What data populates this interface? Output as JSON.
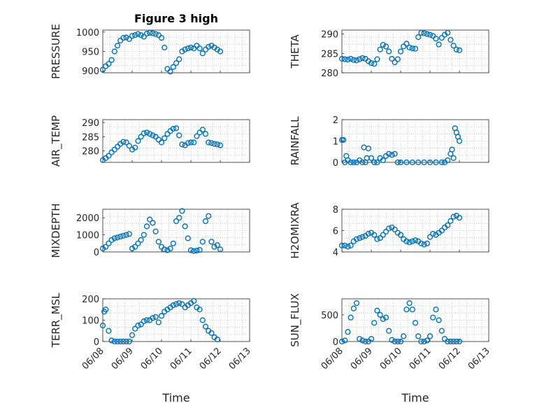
{
  "figure": {
    "title": "Figure 3 high"
  },
  "chart_data": [
    {
      "id": "pressure",
      "type": "scatter",
      "ylabel": "PRESSURE",
      "ylim": [
        895,
        1005
      ],
      "yticks": [
        900,
        950,
        1000
      ],
      "xlim": [
        0,
        5
      ],
      "show_xticklabels": false,
      "title": "Figure 3 high",
      "x": [
        0.0,
        0.1,
        0.2,
        0.3,
        0.4,
        0.5,
        0.6,
        0.7,
        0.8,
        0.9,
        1.0,
        1.1,
        1.2,
        1.3,
        1.4,
        1.5,
        1.6,
        1.7,
        1.8,
        1.9,
        2.0,
        2.1,
        2.2,
        2.3,
        2.4,
        2.5,
        2.6,
        2.7,
        2.8,
        2.9,
        3.0,
        3.1,
        3.2,
        3.3,
        3.4,
        3.5,
        3.6,
        3.7,
        3.8,
        3.9,
        4.0
      ],
      "y": [
        903,
        912,
        918,
        928,
        950,
        965,
        978,
        985,
        986,
        982,
        990,
        992,
        995,
        992,
        988,
        996,
        998,
        997,
        995,
        992,
        985,
        960,
        905,
        898,
        910,
        920,
        930,
        950,
        955,
        958,
        960,
        958,
        965,
        958,
        945,
        955,
        962,
        965,
        960,
        955,
        950
      ]
    },
    {
      "id": "theta",
      "type": "scatter",
      "ylabel": "THETA",
      "ylim": [
        280,
        291
      ],
      "yticks": [
        280,
        285,
        290
      ],
      "xlim": [
        0,
        5
      ],
      "show_xticklabels": false,
      "x": [
        0.0,
        0.1,
        0.2,
        0.3,
        0.4,
        0.5,
        0.6,
        0.7,
        0.8,
        0.9,
        1.0,
        1.1,
        1.2,
        1.3,
        1.4,
        1.5,
        1.6,
        1.7,
        1.8,
        1.9,
        2.0,
        2.1,
        2.2,
        2.3,
        2.4,
        2.5,
        2.6,
        2.7,
        2.8,
        2.9,
        3.0,
        3.1,
        3.2,
        3.3,
        3.4,
        3.5,
        3.6,
        3.7,
        3.8,
        3.9,
        4.0
      ],
      "y": [
        283.6,
        283.5,
        283.4,
        283.6,
        283.3,
        283.2,
        283.5,
        283.8,
        283.6,
        283.0,
        282.5,
        282.3,
        283.5,
        286.0,
        287.2,
        286.8,
        285.5,
        283.6,
        282.7,
        283.5,
        285.5,
        286.8,
        287.5,
        286.5,
        286.3,
        286.2,
        289.2,
        290.3,
        290.2,
        290.0,
        289.8,
        289.5,
        288.8,
        287.3,
        289.0,
        289.8,
        290.3,
        288.5,
        287.0,
        286.0,
        285.8
      ]
    },
    {
      "id": "air_temp",
      "type": "scatter",
      "ylabel": "AIR_TEMP",
      "ylim": [
        276,
        291
      ],
      "yticks": [
        280,
        285,
        290
      ],
      "xlim": [
        0,
        5
      ],
      "show_xticklabels": false,
      "x": [
        0.0,
        0.1,
        0.2,
        0.3,
        0.4,
        0.5,
        0.6,
        0.7,
        0.8,
        0.9,
        1.0,
        1.1,
        1.2,
        1.3,
        1.4,
        1.5,
        1.6,
        1.7,
        1.8,
        1.9,
        2.0,
        2.1,
        2.2,
        2.3,
        2.4,
        2.5,
        2.6,
        2.7,
        2.8,
        2.9,
        3.0,
        3.1,
        3.2,
        3.3,
        3.4,
        3.5,
        3.6,
        3.7,
        3.8,
        3.9,
        4.0
      ],
      "y": [
        276.8,
        277.5,
        278.3,
        279.5,
        280.5,
        281.5,
        282.5,
        283.2,
        283.0,
        281.8,
        280.5,
        281.2,
        283.5,
        285.0,
        286.2,
        286.5,
        286.0,
        285.5,
        285.0,
        284.0,
        283.0,
        284.5,
        286.0,
        287.0,
        287.8,
        288.0,
        285.5,
        282.3,
        282.0,
        282.8,
        283.0,
        283.0,
        285.2,
        286.5,
        287.5,
        286.0,
        283.0,
        282.8,
        282.5,
        282.3,
        282.0
      ]
    },
    {
      "id": "rainfall",
      "type": "scatter",
      "ylabel": "RAINFALL",
      "ylim": [
        0,
        2
      ],
      "yticks": [
        0,
        1,
        2
      ],
      "xlim": [
        0,
        5
      ],
      "show_xticklabels": false,
      "x": [
        0.0,
        0.05,
        0.1,
        0.15,
        0.2,
        0.3,
        0.4,
        0.5,
        0.6,
        0.7,
        0.75,
        0.8,
        0.85,
        0.9,
        1.0,
        1.1,
        1.2,
        1.3,
        1.4,
        1.5,
        1.6,
        1.7,
        1.8,
        1.9,
        2.0,
        2.2,
        2.4,
        2.6,
        2.8,
        3.0,
        3.2,
        3.4,
        3.5,
        3.6,
        3.7,
        3.75,
        3.8,
        3.85,
        3.9,
        3.95,
        4.0
      ],
      "y": [
        1.05,
        1.05,
        0.0,
        0.3,
        0.1,
        0.0,
        0.0,
        0.0,
        0.1,
        0.0,
        0.7,
        0.0,
        0.2,
        0.65,
        0.2,
        0.0,
        0.0,
        0.2,
        0.1,
        0.3,
        0.4,
        0.35,
        0.4,
        0.0,
        0.0,
        0.0,
        0.0,
        0.0,
        0.0,
        0.0,
        0.0,
        0.0,
        0.0,
        0.1,
        0.4,
        0.6,
        0.2,
        1.6,
        1.4,
        1.2,
        1.0
      ]
    },
    {
      "id": "mixdepth",
      "type": "scatter",
      "ylabel": "MIXDEPTH",
      "ylim": [
        0,
        2500
      ],
      "yticks": [
        0,
        1000,
        2000
      ],
      "xlim": [
        0,
        5
      ],
      "show_xticklabels": false,
      "x": [
        0.0,
        0.1,
        0.2,
        0.3,
        0.4,
        0.5,
        0.6,
        0.7,
        0.8,
        0.9,
        1.0,
        1.1,
        1.2,
        1.3,
        1.4,
        1.5,
        1.6,
        1.7,
        1.8,
        1.9,
        2.0,
        2.1,
        2.2,
        2.3,
        2.4,
        2.5,
        2.6,
        2.7,
        2.8,
        2.9,
        3.0,
        3.1,
        3.2,
        3.3,
        3.4,
        3.5,
        3.6,
        3.7,
        3.8,
        3.9,
        4.0
      ],
      "y": [
        200,
        300,
        500,
        700,
        800,
        850,
        900,
        950,
        1000,
        1050,
        200,
        300,
        500,
        700,
        1000,
        1500,
        1900,
        1700,
        1200,
        600,
        300,
        150,
        100,
        200,
        500,
        1800,
        2000,
        2400,
        1500,
        800,
        100,
        50,
        80,
        120,
        600,
        1800,
        2100,
        600,
        300,
        400,
        150
      ]
    },
    {
      "id": "h2omixra",
      "type": "scatter",
      "ylabel": "H2OMIXRA",
      "ylim": [
        4,
        8
      ],
      "yticks": [
        4,
        6,
        8
      ],
      "xlim": [
        0,
        5
      ],
      "show_xticklabels": false,
      "x": [
        0.0,
        0.1,
        0.2,
        0.3,
        0.4,
        0.5,
        0.6,
        0.7,
        0.8,
        0.9,
        1.0,
        1.1,
        1.2,
        1.3,
        1.4,
        1.5,
        1.6,
        1.7,
        1.8,
        1.9,
        2.0,
        2.1,
        2.2,
        2.3,
        2.4,
        2.5,
        2.6,
        2.7,
        2.8,
        2.9,
        3.0,
        3.1,
        3.2,
        3.3,
        3.4,
        3.5,
        3.6,
        3.7,
        3.8,
        3.9,
        4.0
      ],
      "y": [
        4.6,
        4.6,
        4.5,
        4.6,
        5.0,
        5.2,
        5.3,
        5.4,
        5.5,
        5.7,
        5.8,
        5.6,
        5.2,
        5.3,
        5.6,
        5.9,
        6.2,
        6.3,
        6.1,
        5.8,
        5.6,
        5.2,
        5.0,
        4.9,
        5.0,
        5.1,
        5.0,
        4.8,
        4.7,
        4.8,
        5.4,
        5.7,
        5.6,
        5.8,
        6.0,
        6.3,
        6.5,
        6.9,
        7.3,
        7.4,
        7.2
      ]
    },
    {
      "id": "terr_msl",
      "type": "scatter",
      "ylabel": "TERR_MSL",
      "ylim": [
        0,
        200
      ],
      "yticks": [
        0,
        100,
        200
      ],
      "xlim": [
        0,
        5
      ],
      "show_xticklabels": true,
      "x": [
        0.0,
        0.05,
        0.1,
        0.2,
        0.3,
        0.4,
        0.5,
        0.6,
        0.7,
        0.8,
        0.9,
        1.0,
        1.1,
        1.2,
        1.3,
        1.4,
        1.5,
        1.6,
        1.7,
        1.8,
        1.9,
        2.0,
        2.1,
        2.2,
        2.3,
        2.4,
        2.5,
        2.6,
        2.7,
        2.8,
        2.9,
        3.0,
        3.1,
        3.2,
        3.3,
        3.4,
        3.5,
        3.6,
        3.7,
        3.8,
        3.9
      ],
      "y": [
        75,
        140,
        150,
        50,
        5,
        0,
        0,
        0,
        0,
        0,
        0,
        30,
        60,
        75,
        80,
        95,
        100,
        100,
        110,
        115,
        90,
        120,
        140,
        150,
        160,
        170,
        175,
        180,
        175,
        160,
        170,
        180,
        190,
        160,
        150,
        100,
        70,
        50,
        40,
        20,
        10
      ]
    },
    {
      "id": "sun_flux",
      "type": "scatter",
      "ylabel": "SUN_FLUX",
      "ylim": [
        0,
        800
      ],
      "yticks": [
        0,
        500
      ],
      "xlim": [
        0,
        5
      ],
      "show_xticklabels": true,
      "x": [
        0.0,
        0.1,
        0.2,
        0.3,
        0.4,
        0.5,
        0.6,
        0.7,
        0.8,
        0.9,
        1.0,
        1.1,
        1.2,
        1.3,
        1.4,
        1.5,
        1.6,
        1.7,
        1.8,
        1.9,
        2.0,
        2.1,
        2.2,
        2.3,
        2.4,
        2.5,
        2.6,
        2.7,
        2.8,
        2.9,
        3.0,
        3.1,
        3.2,
        3.3,
        3.4,
        3.5,
        3.6,
        3.7,
        3.8,
        3.9,
        4.0
      ],
      "y": [
        0,
        20,
        180,
        450,
        620,
        720,
        50,
        20,
        0,
        0,
        50,
        350,
        580,
        500,
        420,
        450,
        200,
        30,
        0,
        0,
        0,
        100,
        600,
        720,
        600,
        350,
        100,
        0,
        0,
        20,
        100,
        450,
        600,
        400,
        200,
        50,
        0,
        0,
        0,
        0,
        0
      ]
    }
  ],
  "xaxis": {
    "ticklabels": [
      "06/08",
      "06/09",
      "06/10",
      "06/11",
      "06/12",
      "06/13"
    ],
    "label": "Time"
  },
  "colors": {
    "marker": "#0072BD",
    "axis": "#262626"
  }
}
